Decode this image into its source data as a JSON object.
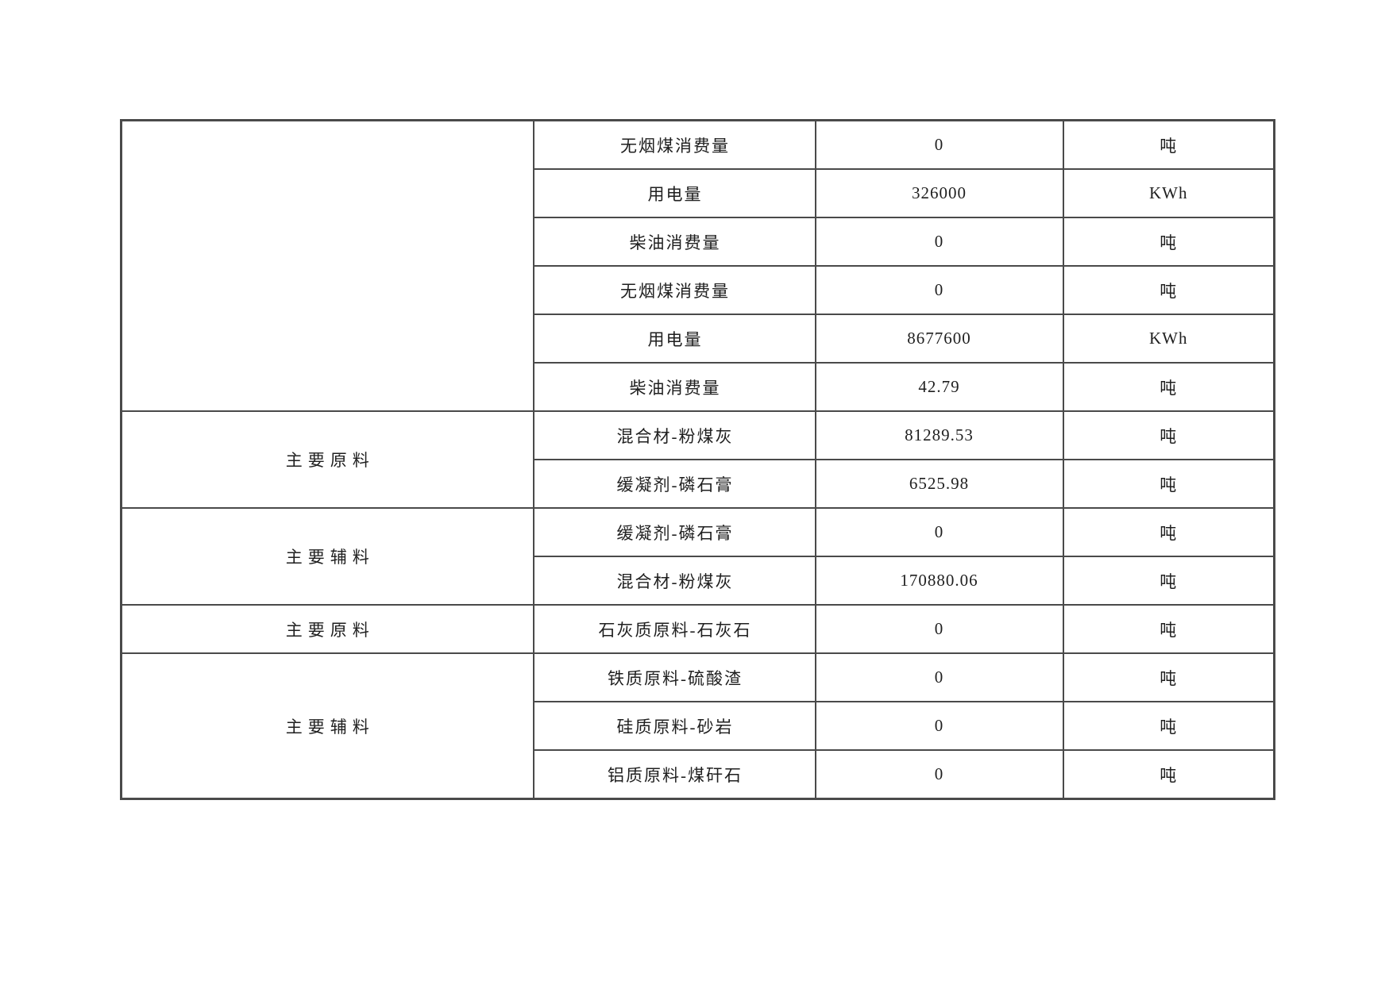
{
  "page": {
    "background_color": "#ffffff",
    "border_color": "#4a4a4a",
    "text_color": "#1f1f1f"
  },
  "table": {
    "columns": [
      "category",
      "item",
      "value",
      "unit"
    ],
    "groups": [
      {
        "label": "",
        "rowspan": 6
      },
      {
        "label": "主要原料",
        "rowspan": 2
      },
      {
        "label": "主要辅料",
        "rowspan": 2
      },
      {
        "label": "主要原料",
        "rowspan": 1
      },
      {
        "label": "主要辅料",
        "rowspan": 3
      }
    ],
    "rows": [
      {
        "item": "无烟煤消费量",
        "value": "0",
        "unit": "吨"
      },
      {
        "item": "用电量",
        "value": "326000",
        "unit": "KWh"
      },
      {
        "item": "柴油消费量",
        "value": "0",
        "unit": "吨"
      },
      {
        "item": "无烟煤消费量",
        "value": "0",
        "unit": "吨"
      },
      {
        "item": "用电量",
        "value": "8677600",
        "unit": "KWh"
      },
      {
        "item": "柴油消费量",
        "value": "42.79",
        "unit": "吨"
      },
      {
        "item": "混合材-粉煤灰",
        "value": "81289.53",
        "unit": "吨"
      },
      {
        "item": "缓凝剂-磷石膏",
        "value": "6525.98",
        "unit": "吨"
      },
      {
        "item": "缓凝剂-磷石膏",
        "value": "0",
        "unit": "吨"
      },
      {
        "item": "混合材-粉煤灰",
        "value": "170880.06",
        "unit": "吨"
      },
      {
        "item": "石灰质原料-石灰石",
        "value": "0",
        "unit": "吨"
      },
      {
        "item": "铁质原料-硫酸渣",
        "value": "0",
        "unit": "吨"
      },
      {
        "item": "硅质原料-砂岩",
        "value": "0",
        "unit": "吨"
      },
      {
        "item": "铝质原料-煤矸石",
        "value": "0",
        "unit": "吨"
      }
    ]
  }
}
